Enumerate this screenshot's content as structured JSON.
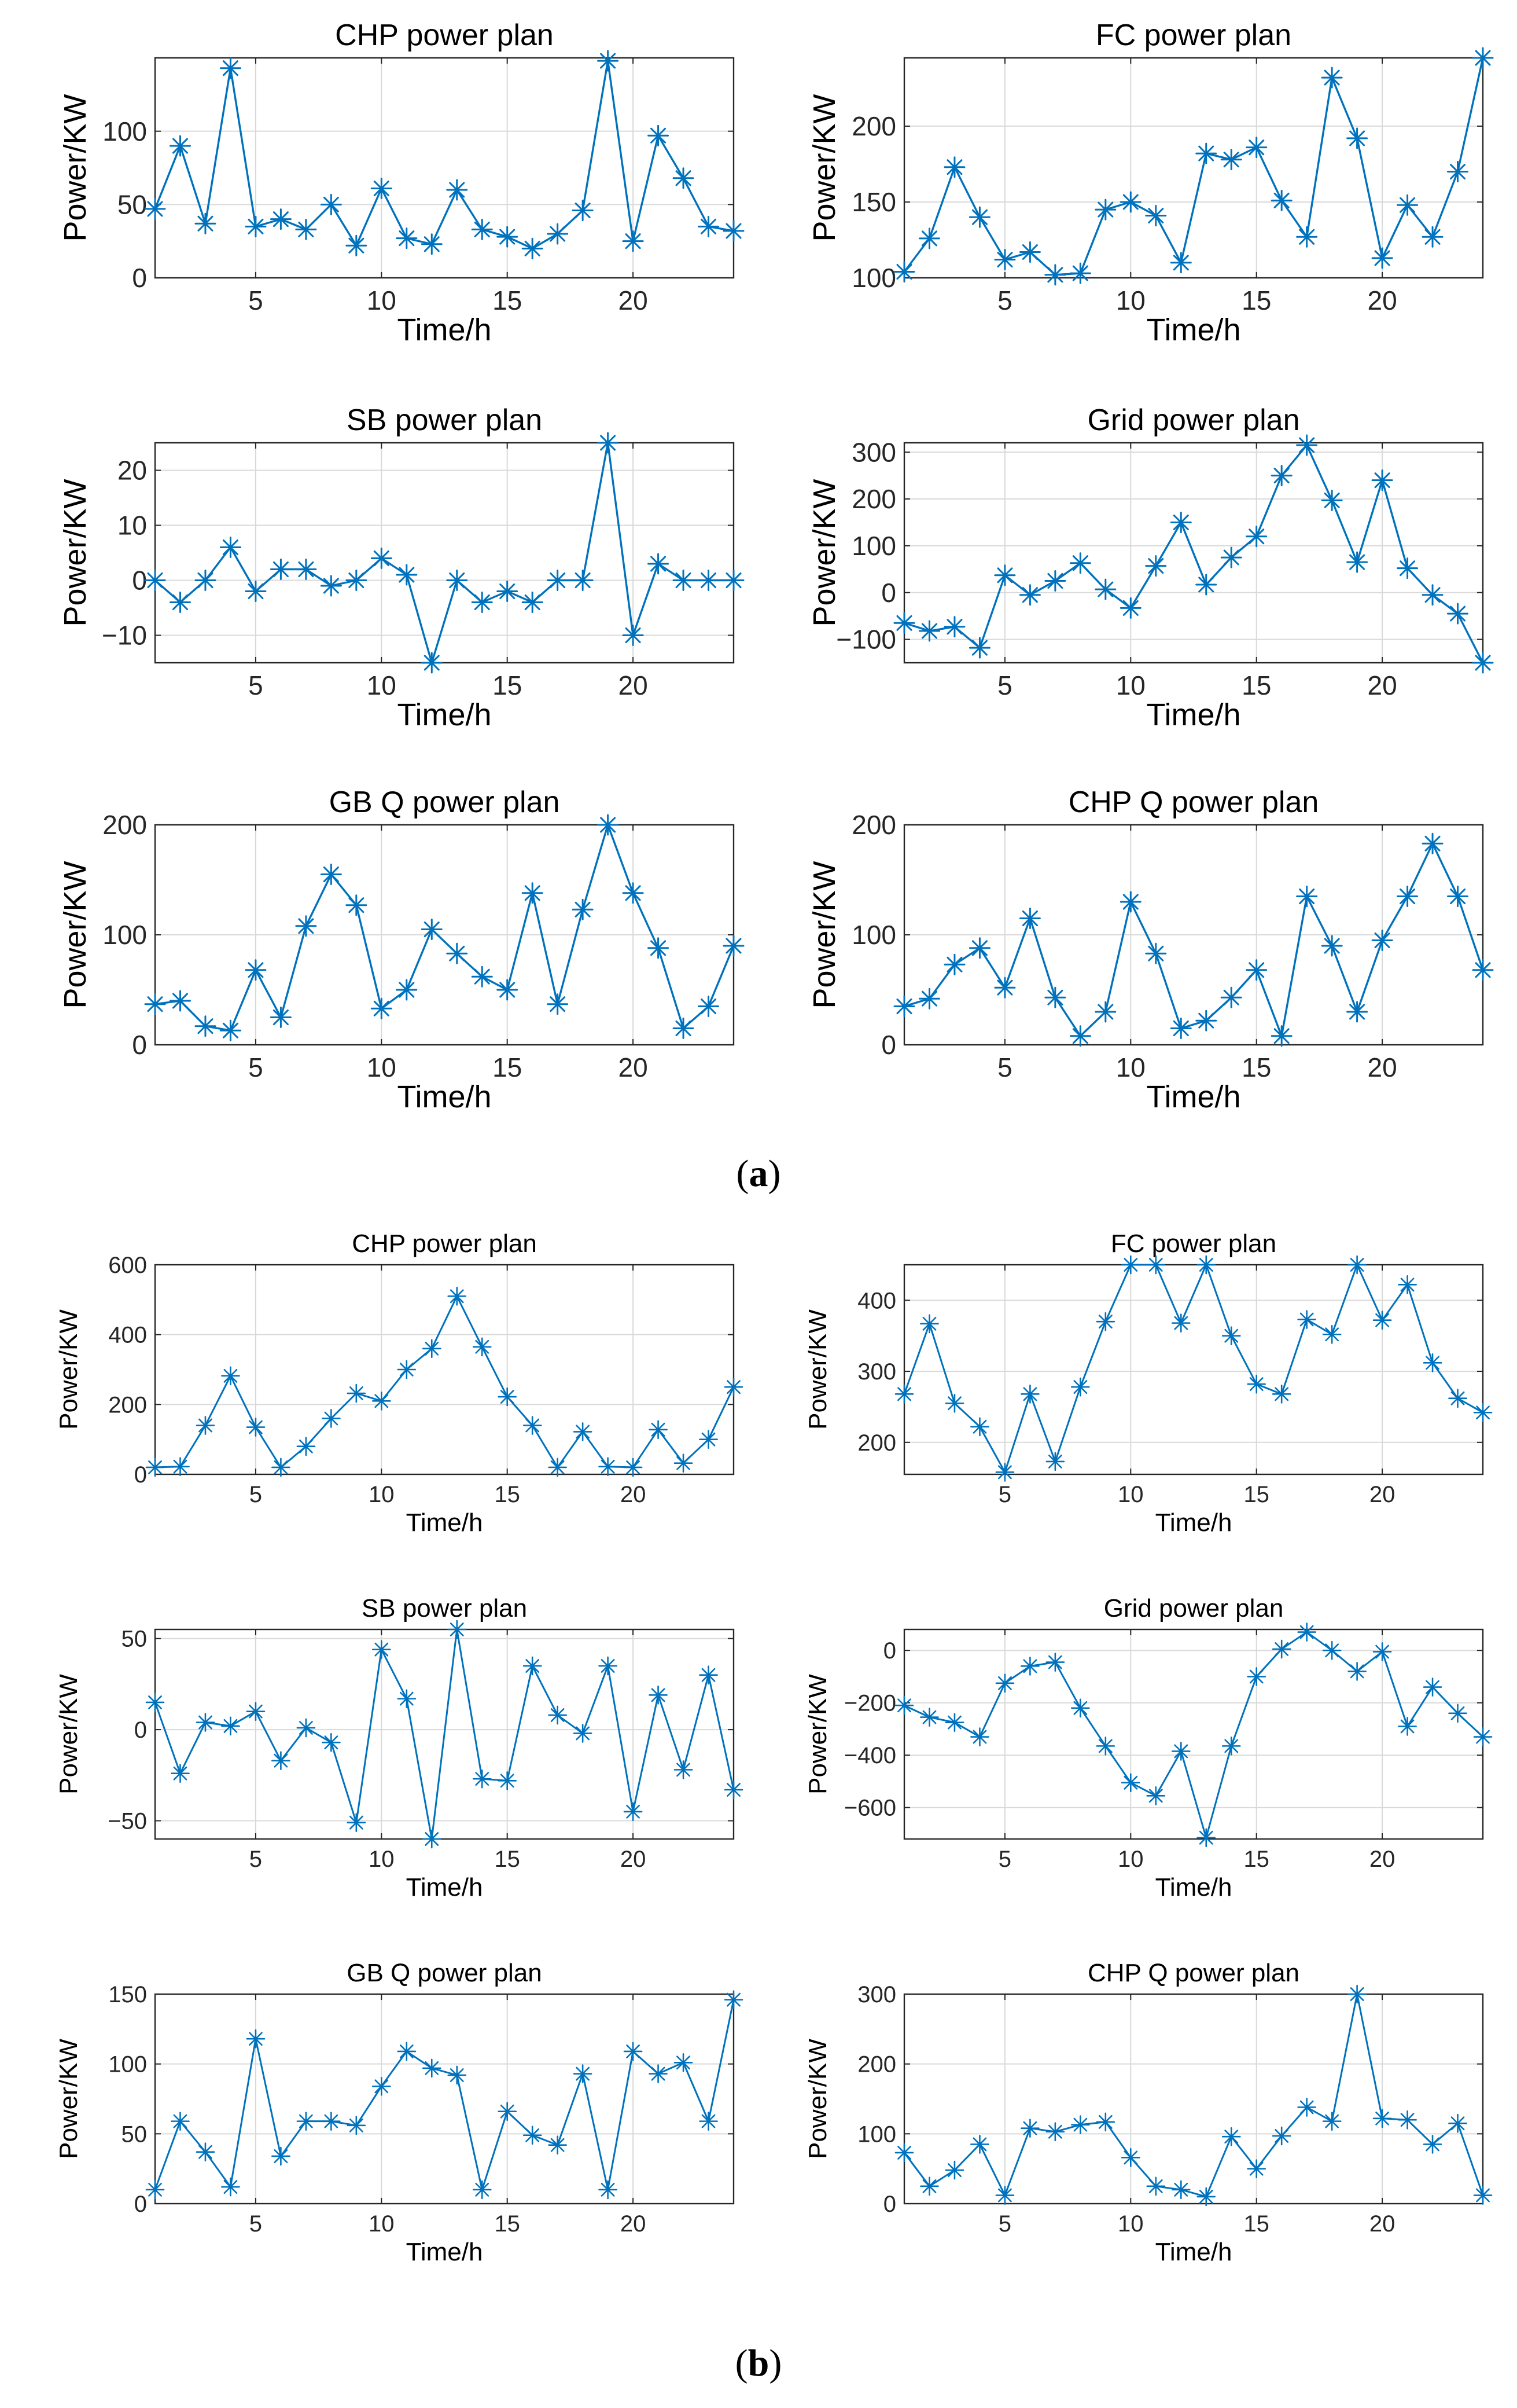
{
  "captions": {
    "a": "a",
    "b": "b"
  },
  "style": {
    "line_color": "#0072BD",
    "grid_color": "#d9d9d9",
    "axis_color": "#262626"
  },
  "chart_data": [
    {
      "panel": "a",
      "type": "line",
      "title": "CHP power plan",
      "xlabel": "Time/h",
      "ylabel": "Power/KW",
      "xlim": [
        1,
        24
      ],
      "ylim": [
        0,
        150
      ],
      "xticks": [
        5,
        10,
        15,
        20
      ],
      "yticks": [
        0,
        50,
        100
      ],
      "x": [
        1,
        2,
        3,
        4,
        5,
        6,
        7,
        8,
        9,
        10,
        11,
        12,
        13,
        14,
        15,
        16,
        17,
        18,
        19,
        20,
        21,
        22,
        23,
        24
      ],
      "series": [
        {
          "values": [
            47,
            90,
            37,
            143,
            35,
            40,
            33,
            50,
            22,
            61,
            27,
            23,
            60,
            33,
            28,
            20,
            30,
            46,
            148,
            25,
            97,
            68,
            35,
            32
          ]
        }
      ]
    },
    {
      "panel": "a",
      "type": "line",
      "title": "FC power plan",
      "xlabel": "Time/h",
      "ylabel": "Power/KW",
      "xlim": [
        1,
        24
      ],
      "ylim": [
        100,
        245
      ],
      "xticks": [
        5,
        10,
        15,
        20
      ],
      "yticks": [
        100,
        150,
        200
      ],
      "x": [
        1,
        2,
        3,
        4,
        5,
        6,
        7,
        8,
        9,
        10,
        11,
        12,
        13,
        14,
        15,
        16,
        17,
        18,
        19,
        20,
        21,
        22,
        23,
        24
      ],
      "series": [
        {
          "values": [
            104,
            126,
            173,
            140,
            112,
            117,
            102,
            103,
            145,
            150,
            141,
            110,
            182,
            178,
            186,
            151,
            127,
            232,
            192,
            113,
            148,
            127,
            170,
            245
          ]
        }
      ]
    },
    {
      "panel": "a",
      "type": "line",
      "title": "SB power plan",
      "xlabel": "Time/h",
      "ylabel": "Power/KW",
      "xlim": [
        1,
        24
      ],
      "ylim": [
        -15,
        25
      ],
      "xticks": [
        5,
        10,
        15,
        20
      ],
      "yticks": [
        -10,
        0,
        10,
        20
      ],
      "x": [
        1,
        2,
        3,
        4,
        5,
        6,
        7,
        8,
        9,
        10,
        11,
        12,
        13,
        14,
        15,
        16,
        17,
        18,
        19,
        20,
        21,
        22,
        23,
        24
      ],
      "series": [
        {
          "values": [
            0,
            -4,
            0,
            6,
            -2,
            2,
            2,
            -1,
            0,
            4,
            1,
            -15,
            0,
            -4,
            -2,
            -4,
            0,
            0,
            25,
            -10,
            3,
            0,
            0,
            0
          ]
        }
      ]
    },
    {
      "panel": "a",
      "type": "line",
      "title": "Grid power plan",
      "xlabel": "Time/h",
      "ylabel": "Power/KW",
      "xlim": [
        1,
        24
      ],
      "ylim": [
        -150,
        320
      ],
      "xticks": [
        5,
        10,
        15,
        20
      ],
      "yticks": [
        -100,
        0,
        100,
        200,
        300
      ],
      "x": [
        1,
        2,
        3,
        4,
        5,
        6,
        7,
        8,
        9,
        10,
        11,
        12,
        13,
        14,
        15,
        16,
        17,
        18,
        19,
        20,
        21,
        22,
        23,
        24
      ],
      "series": [
        {
          "values": [
            -65,
            -82,
            -73,
            -118,
            37,
            -5,
            25,
            63,
            7,
            -33,
            57,
            150,
            17,
            75,
            120,
            250,
            315,
            197,
            65,
            240,
            52,
            -5,
            -45,
            -150
          ]
        }
      ]
    },
    {
      "panel": "a",
      "type": "line",
      "title": "GB Q power plan",
      "xlabel": "Time/h",
      "ylabel": "Power/KW",
      "xlim": [
        1,
        24
      ],
      "ylim": [
        0,
        200
      ],
      "xticks": [
        5,
        10,
        15,
        20
      ],
      "yticks": [
        0,
        100,
        200
      ],
      "x": [
        1,
        2,
        3,
        4,
        5,
        6,
        7,
        8,
        9,
        10,
        11,
        12,
        13,
        14,
        15,
        16,
        17,
        18,
        19,
        20,
        21,
        22,
        23,
        24
      ],
      "series": [
        {
          "values": [
            37,
            40,
            17,
            13,
            68,
            25,
            108,
            155,
            127,
            33,
            50,
            105,
            83,
            62,
            50,
            138,
            37,
            123,
            200,
            138,
            88,
            15,
            35,
            90
          ]
        }
      ]
    },
    {
      "panel": "a",
      "type": "line",
      "title": "CHP Q power plan",
      "xlabel": "Time/h",
      "ylabel": "Power/KW",
      "xlim": [
        1,
        24
      ],
      "ylim": [
        0,
        200
      ],
      "xticks": [
        5,
        10,
        15,
        20
      ],
      "yticks": [
        0,
        100,
        200
      ],
      "x": [
        1,
        2,
        3,
        4,
        5,
        6,
        7,
        8,
        9,
        10,
        11,
        12,
        13,
        14,
        15,
        16,
        17,
        18,
        19,
        20,
        21,
        22,
        23,
        24
      ],
      "series": [
        {
          "values": [
            35,
            42,
            73,
            88,
            52,
            115,
            43,
            8,
            30,
            130,
            83,
            15,
            22,
            43,
            68,
            8,
            135,
            90,
            30,
            95,
            135,
            183,
            135,
            68
          ]
        }
      ]
    },
    {
      "panel": "b",
      "type": "line",
      "title": "CHP power plan",
      "xlabel": "Time/h",
      "ylabel": "Power/KW",
      "xlim": [
        1,
        24
      ],
      "ylim": [
        0,
        600
      ],
      "xticks": [
        5,
        10,
        15,
        20
      ],
      "yticks": [
        0,
        200,
        400,
        600
      ],
      "x": [
        1,
        2,
        3,
        4,
        5,
        6,
        7,
        8,
        9,
        10,
        11,
        12,
        13,
        14,
        15,
        16,
        17,
        18,
        19,
        20,
        21,
        22,
        23,
        24
      ],
      "series": [
        {
          "values": [
            20,
            22,
            140,
            282,
            135,
            20,
            80,
            160,
            232,
            210,
            300,
            360,
            510,
            365,
            222,
            140,
            20,
            122,
            22,
            20,
            128,
            32,
            100,
            250
          ]
        }
      ]
    },
    {
      "panel": "b",
      "type": "line",
      "title": "FC power plan",
      "xlabel": "Time/h",
      "ylabel": "Power/KW",
      "xlim": [
        1,
        24
      ],
      "ylim": [
        155,
        450
      ],
      "xticks": [
        5,
        10,
        15,
        20
      ],
      "yticks": [
        200,
        300,
        400
      ],
      "x": [
        1,
        2,
        3,
        4,
        5,
        6,
        7,
        8,
        9,
        10,
        11,
        12,
        13,
        14,
        15,
        16,
        17,
        18,
        19,
        20,
        21,
        22,
        23,
        24
      ],
      "series": [
        {
          "values": [
            268,
            367,
            255,
            222,
            158,
            268,
            173,
            278,
            370,
            450,
            450,
            368,
            450,
            350,
            282,
            268,
            373,
            352,
            450,
            372,
            422,
            312,
            262,
            242
          ]
        }
      ]
    },
    {
      "panel": "b",
      "type": "line",
      "title": "SB power plan",
      "xlabel": "Time/h",
      "ylabel": "Power/KW",
      "xlim": [
        1,
        24
      ],
      "ylim": [
        -60,
        55
      ],
      "xticks": [
        5,
        10,
        15,
        20
      ],
      "yticks": [
        -50,
        0,
        50
      ],
      "x": [
        1,
        2,
        3,
        4,
        5,
        6,
        7,
        8,
        9,
        10,
        11,
        12,
        13,
        14,
        15,
        16,
        17,
        18,
        19,
        20,
        21,
        22,
        23,
        24
      ],
      "series": [
        {
          "values": [
            15,
            -24,
            4,
            2,
            10,
            -17,
            1,
            -7,
            -51,
            44,
            17,
            -60,
            55,
            -27,
            -28,
            35,
            8,
            -2,
            35,
            -45,
            19,
            -22,
            30,
            -33
          ]
        }
      ]
    },
    {
      "panel": "b",
      "type": "line",
      "title": "Grid power plan",
      "xlabel": "Time/h",
      "ylabel": "Power/KW",
      "xlim": [
        1,
        24
      ],
      "ylim": [
        -720,
        80
      ],
      "xticks": [
        5,
        10,
        15,
        20
      ],
      "yticks": [
        -600,
        -400,
        -200,
        0
      ],
      "x": [
        1,
        2,
        3,
        4,
        5,
        6,
        7,
        8,
        9,
        10,
        11,
        12,
        13,
        14,
        15,
        16,
        17,
        18,
        19,
        20,
        21,
        22,
        23,
        24
      ],
      "series": [
        {
          "values": [
            -210,
            -255,
            -275,
            -330,
            -125,
            -60,
            -45,
            -220,
            -365,
            -505,
            -555,
            -385,
            -715,
            -365,
            -100,
            5,
            70,
            0,
            -80,
            -5,
            -290,
            -140,
            -240,
            -330
          ]
        }
      ]
    },
    {
      "panel": "b",
      "type": "line",
      "title": "GB Q power plan",
      "xlabel": "Time/h",
      "ylabel": "Power/KW",
      "xlim": [
        1,
        24
      ],
      "ylim": [
        0,
        150
      ],
      "xticks": [
        5,
        10,
        15,
        20
      ],
      "yticks": [
        0,
        50,
        100,
        150
      ],
      "x": [
        1,
        2,
        3,
        4,
        5,
        6,
        7,
        8,
        9,
        10,
        11,
        12,
        13,
        14,
        15,
        16,
        17,
        18,
        19,
        20,
        21,
        22,
        23,
        24
      ],
      "series": [
        {
          "values": [
            10,
            59,
            37,
            12,
            118,
            34,
            59,
            59,
            56,
            84,
            109,
            97,
            92,
            10,
            66,
            49,
            42,
            93,
            10,
            109,
            93,
            101,
            59,
            146
          ]
        }
      ]
    },
    {
      "panel": "b",
      "type": "line",
      "title": "CHP Q power plan",
      "xlabel": "Time/h",
      "ylabel": "Power/KW",
      "xlim": [
        1,
        24
      ],
      "ylim": [
        0,
        300
      ],
      "xticks": [
        5,
        10,
        15,
        20
      ],
      "yticks": [
        0,
        100,
        200,
        300
      ],
      "x": [
        1,
        2,
        3,
        4,
        5,
        6,
        7,
        8,
        9,
        10,
        11,
        12,
        13,
        14,
        15,
        16,
        17,
        18,
        19,
        20,
        21,
        22,
        23,
        24
      ],
      "series": [
        {
          "values": [
            73,
            25,
            48,
            85,
            12,
            108,
            103,
            113,
            117,
            66,
            25,
            20,
            10,
            96,
            50,
            97,
            138,
            118,
            300,
            122,
            120,
            85,
            115,
            12
          ]
        }
      ]
    }
  ]
}
